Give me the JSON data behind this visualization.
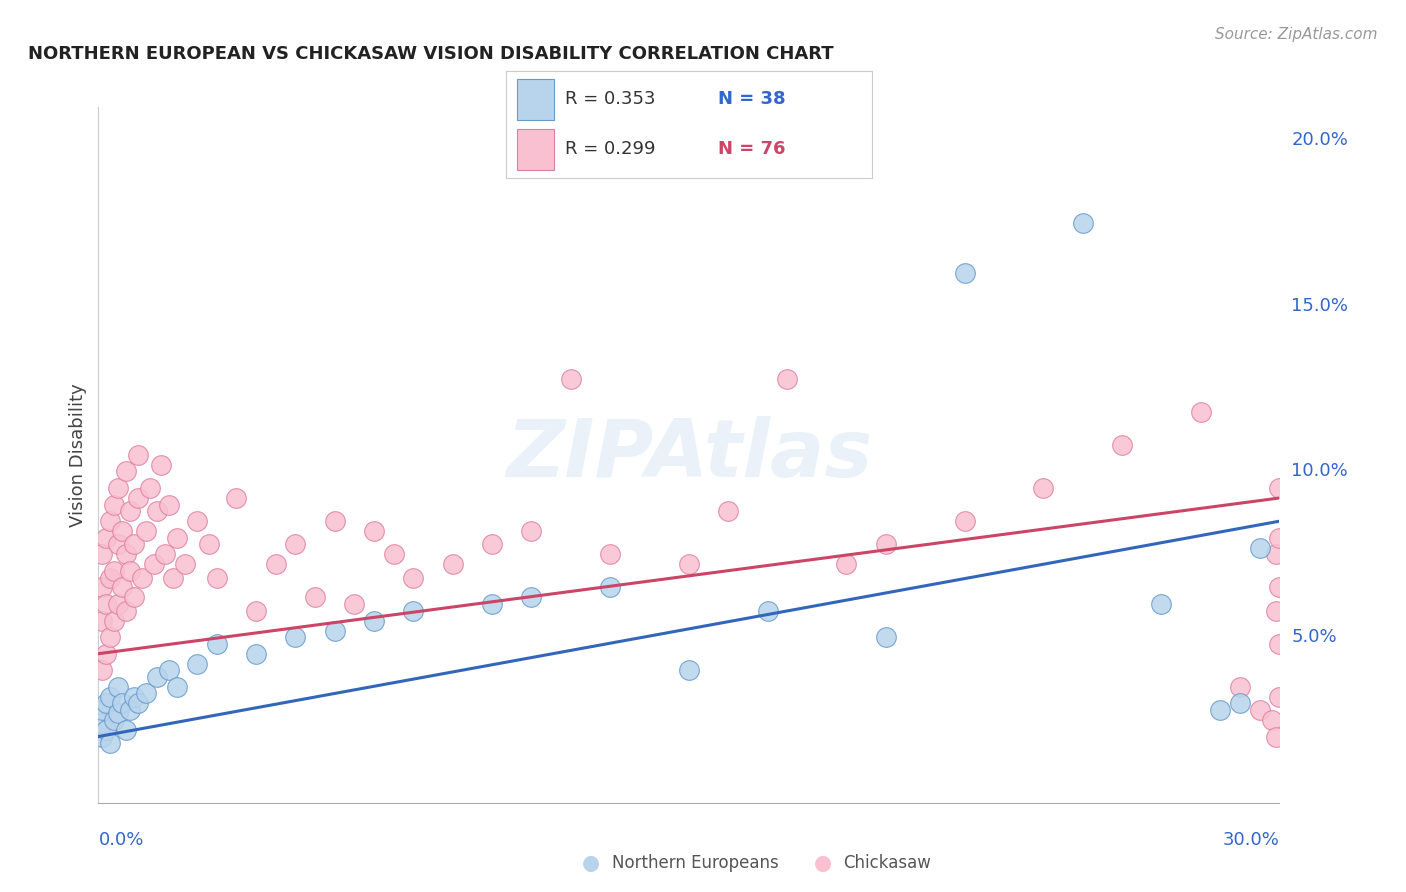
{
  "title": "NORTHERN EUROPEAN VS CHICKASAW VISION DISABILITY CORRELATION CHART",
  "source": "Source: ZipAtlas.com",
  "ylabel": "Vision Disability",
  "xlim": [
    0.0,
    0.3
  ],
  "ylim": [
    0.0,
    0.21
  ],
  "yticks": [
    0.05,
    0.1,
    0.15,
    0.2
  ],
  "ytick_labels": [
    "5.0%",
    "10.0%",
    "15.0%",
    "20.0%"
  ],
  "color_blue_fill": "#b8d4ec",
  "color_blue_edge": "#6699cc",
  "color_pink_fill": "#f8c0d0",
  "color_pink_edge": "#e080a0",
  "color_blue_line": "#3366bb",
  "color_pink_line": "#cc4466",
  "color_blue_text": "#3366cc",
  "color_pink_text": "#cc4466",
  "ne_x": [
    0.001,
    0.001,
    0.001,
    0.002,
    0.002,
    0.003,
    0.003,
    0.004,
    0.005,
    0.005,
    0.006,
    0.007,
    0.008,
    0.009,
    0.01,
    0.012,
    0.015,
    0.018,
    0.02,
    0.025,
    0.03,
    0.04,
    0.05,
    0.06,
    0.07,
    0.08,
    0.1,
    0.11,
    0.13,
    0.15,
    0.17,
    0.2,
    0.22,
    0.25,
    0.27,
    0.285,
    0.29,
    0.295
  ],
  "ne_y": [
    0.02,
    0.024,
    0.028,
    0.022,
    0.03,
    0.018,
    0.032,
    0.025,
    0.027,
    0.035,
    0.03,
    0.022,
    0.028,
    0.032,
    0.03,
    0.033,
    0.038,
    0.04,
    0.035,
    0.042,
    0.048,
    0.045,
    0.05,
    0.052,
    0.055,
    0.058,
    0.06,
    0.062,
    0.065,
    0.04,
    0.058,
    0.05,
    0.16,
    0.175,
    0.06,
    0.028,
    0.03,
    0.077
  ],
  "ck_x": [
    0.001,
    0.001,
    0.001,
    0.001,
    0.002,
    0.002,
    0.002,
    0.003,
    0.003,
    0.003,
    0.004,
    0.004,
    0.004,
    0.005,
    0.005,
    0.005,
    0.006,
    0.006,
    0.007,
    0.007,
    0.007,
    0.008,
    0.008,
    0.009,
    0.009,
    0.01,
    0.01,
    0.011,
    0.012,
    0.013,
    0.014,
    0.015,
    0.016,
    0.017,
    0.018,
    0.019,
    0.02,
    0.022,
    0.025,
    0.028,
    0.03,
    0.035,
    0.04,
    0.045,
    0.05,
    0.055,
    0.06,
    0.065,
    0.07,
    0.075,
    0.08,
    0.09,
    0.1,
    0.11,
    0.12,
    0.13,
    0.15,
    0.16,
    0.175,
    0.19,
    0.2,
    0.22,
    0.24,
    0.26,
    0.28,
    0.29,
    0.295,
    0.298,
    0.299,
    0.299,
    0.299,
    0.3,
    0.3,
    0.3,
    0.3,
    0.3
  ],
  "ck_y": [
    0.04,
    0.055,
    0.065,
    0.075,
    0.045,
    0.06,
    0.08,
    0.05,
    0.068,
    0.085,
    0.055,
    0.07,
    0.09,
    0.06,
    0.078,
    0.095,
    0.065,
    0.082,
    0.058,
    0.075,
    0.1,
    0.07,
    0.088,
    0.062,
    0.078,
    0.092,
    0.105,
    0.068,
    0.082,
    0.095,
    0.072,
    0.088,
    0.102,
    0.075,
    0.09,
    0.068,
    0.08,
    0.072,
    0.085,
    0.078,
    0.068,
    0.092,
    0.058,
    0.072,
    0.078,
    0.062,
    0.085,
    0.06,
    0.082,
    0.075,
    0.068,
    0.072,
    0.078,
    0.082,
    0.128,
    0.075,
    0.072,
    0.088,
    0.128,
    0.072,
    0.078,
    0.085,
    0.095,
    0.108,
    0.118,
    0.035,
    0.028,
    0.025,
    0.02,
    0.058,
    0.075,
    0.032,
    0.048,
    0.065,
    0.08,
    0.095
  ]
}
